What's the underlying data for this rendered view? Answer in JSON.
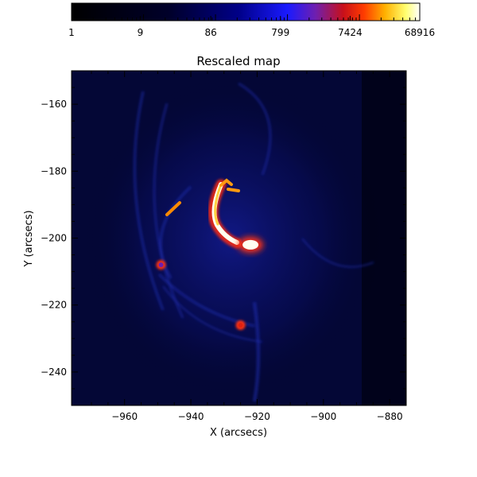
{
  "chart_data": {
    "type": "heatmap",
    "title": "Rescaled map",
    "xlabel": "X (arcsecs)",
    "ylabel": "Y (arcsecs)",
    "xlim": [
      -976,
      -875
    ],
    "ylim": [
      -250,
      -150
    ],
    "xticks": [
      -960,
      -940,
      -920,
      -900,
      -880
    ],
    "yticks": [
      -160,
      -180,
      -200,
      -220,
      -240
    ],
    "grid": false,
    "colorbar": {
      "position": "top",
      "scale": "log",
      "range": [
        1,
        68916
      ],
      "ticks": [
        1,
        9,
        86,
        799,
        7424,
        68916
      ],
      "colormap": "black-blue-red-yellow-white"
    },
    "features": [
      {
        "name": "bright arc",
        "x": -929,
        "y": -192,
        "intensity": 68916
      },
      {
        "name": "core",
        "x": -922,
        "y": -202,
        "intensity": 68916
      },
      {
        "name": "hook",
        "x": -928,
        "y": -183,
        "intensity": 40000
      },
      {
        "name": "western streak",
        "x": -947,
        "y": -191,
        "intensity": 20000
      },
      {
        "name": "southern knot",
        "x": -925,
        "y": -226,
        "intensity": 9000
      },
      {
        "name": "small spot",
        "x": -949,
        "y": -208,
        "intensity": 3000
      }
    ]
  }
}
